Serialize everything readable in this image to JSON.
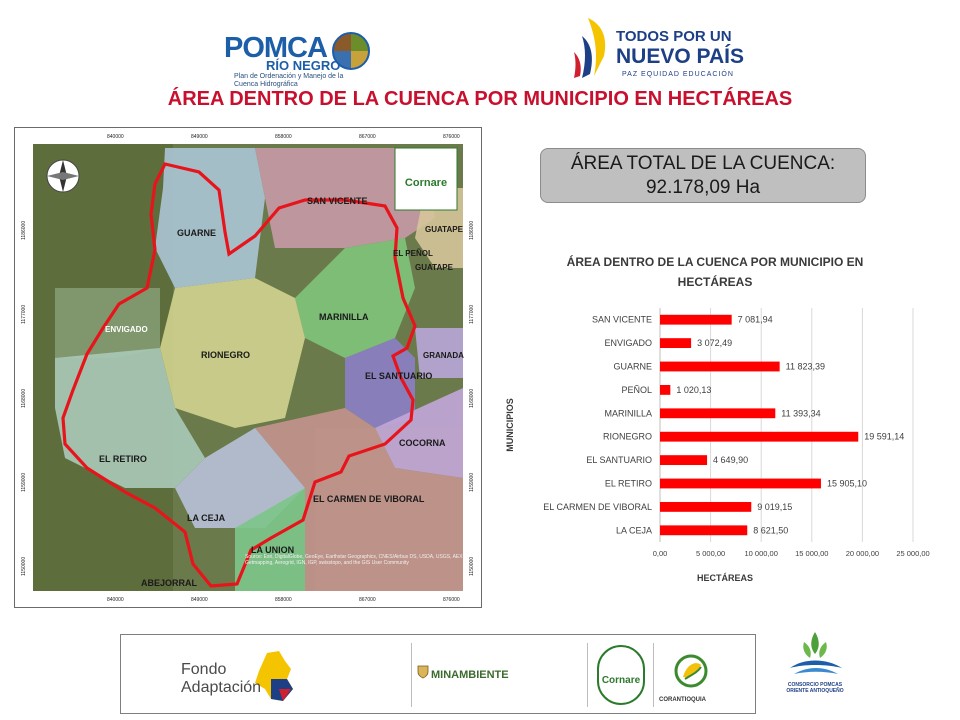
{
  "header": {
    "pomca_logo": {
      "word": "POMCA",
      "subtitle": "RÍO NEGRO",
      "tagline": "Plan de Ordenación y Manejo de la Cuenca Hidrográfica"
    },
    "gov_logo": {
      "line1": "TODOS POR UN",
      "line2": "NUEVO PAÍS",
      "line3": "PAZ  EQUIDAD  EDUCACIÓN"
    },
    "title": "ÁREA DENTRO DE LA CUENCA POR MUNICIPIO EN HECTÁREAS"
  },
  "map": {
    "coord_top": [
      "840000",
      "849000",
      "858000",
      "867000",
      "876000"
    ],
    "coord_side": [
      "1186000",
      "1177000",
      "1168000",
      "1159000",
      "1150000"
    ],
    "labels": [
      "SAN VICENTE",
      "GUARNE",
      "GUATAPE",
      "EL PEÑOL",
      "GUATAPE",
      "ENVIGADO",
      "MARINILLA",
      "RIONEGRO",
      "GRANADA",
      "EL SANTUARIO",
      "COCORNA",
      "EL RETIRO",
      "EL CARMEN DE VIBORAL",
      "LA CEJA",
      "LA UNION",
      "ABEJORRAL"
    ],
    "cornare_badge": "Cornare",
    "source_text": "Source: Esri, DigitalGlobe, GeoEye, Earthstar Geographics, CNES/Airbus DS, USDA, USGS, AEX, Getmapping, Aerogrid, IGN, IGP, swisstopo, and the GIS User Community"
  },
  "total": {
    "label": "ÁREA TOTAL DE LA CUENCA:",
    "value": "92.178,09 Ha"
  },
  "chart_data": {
    "type": "bar",
    "orientation": "horizontal",
    "title": "ÁREA DENTRO DE LA CUENCA POR MUNICIPIO EN HECTÁREAS",
    "xlabel": "HECTÁREAS",
    "ylabel": "MUNICIPIOS",
    "categories": [
      "SAN VICENTE",
      "ENVIGADO",
      "GUARNE",
      "PEÑOL",
      "MARINILLA",
      "RIONEGRO",
      "EL SANTUARIO",
      "EL RETIRO",
      "EL CARMEN DE VIBORAL",
      "LA CEJA"
    ],
    "values": [
      7081.94,
      3072.49,
      11823.39,
      1020.13,
      11393.34,
      19591.14,
      4649.9,
      15905.1,
      9019.15,
      8621.5
    ],
    "value_labels": [
      "7 081,94",
      "3 072,49",
      "11 823,39",
      "1 020,13",
      "11 393,34",
      "19 591,14",
      "4 649,90",
      "15 905,10",
      "9 019,15",
      "8 621,50"
    ],
    "xlim": [
      0,
      25000
    ],
    "ticks": [
      0,
      5000,
      10000,
      15000,
      20000,
      25000
    ],
    "tick_labels": [
      "0,00",
      "5 000,00",
      "10 000,00",
      "15 000,00",
      "20 000,00",
      "25 000,00"
    ],
    "grid": true,
    "bar_color": "#ff0000"
  },
  "footer": {
    "fondo_line1": "Fondo",
    "fondo_line2": "Adaptación",
    "minambiente": "MINAMBIENTE",
    "cornare": "Cornare",
    "corantioquia": "CORANTIOQUIA",
    "consorcio": "CONSORCIO POMCAS ORIENTE ANTIOQUEÑO"
  },
  "colors": {
    "title_red": "#c8102e",
    "gov_blue": "#1d3f86",
    "pomca_blue": "#1d5ea8",
    "basin_outline": "#e8141b"
  }
}
